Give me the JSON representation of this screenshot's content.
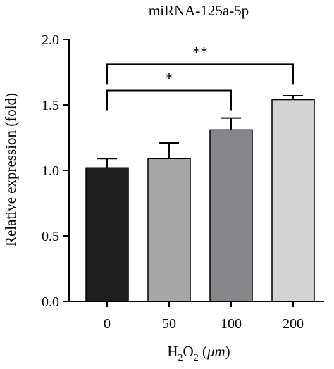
{
  "chart_data": {
    "type": "bar",
    "title": "miRNA-125a-5p",
    "xlabel": {
      "base": "H",
      "sub1": "2",
      "mid": "O",
      "sub2": "2",
      "open": " (",
      "unit": "μm",
      "close": ")"
    },
    "ylabel": "Relative expression (fold)",
    "ylim": [
      0,
      2.0
    ],
    "yticks": [
      0.0,
      0.5,
      1.0,
      1.5,
      2.0
    ],
    "ytick_labels": [
      "0.0",
      "0.5",
      "1.0",
      "1.5",
      "2.0"
    ],
    "categories": [
      "0",
      "50",
      "100",
      "200"
    ],
    "values": [
      1.02,
      1.09,
      1.31,
      1.54
    ],
    "errors": [
      0.07,
      0.12,
      0.09,
      0.03
    ],
    "colors": [
      "#1e1e1e",
      "#a6a6a8",
      "#86868a",
      "#d3d3d5"
    ],
    "significance": [
      {
        "from": 0,
        "to": 2,
        "label": "*",
        "y": 1.61
      },
      {
        "from": 0,
        "to": 3,
        "label": "**",
        "y": 1.81
      }
    ]
  }
}
